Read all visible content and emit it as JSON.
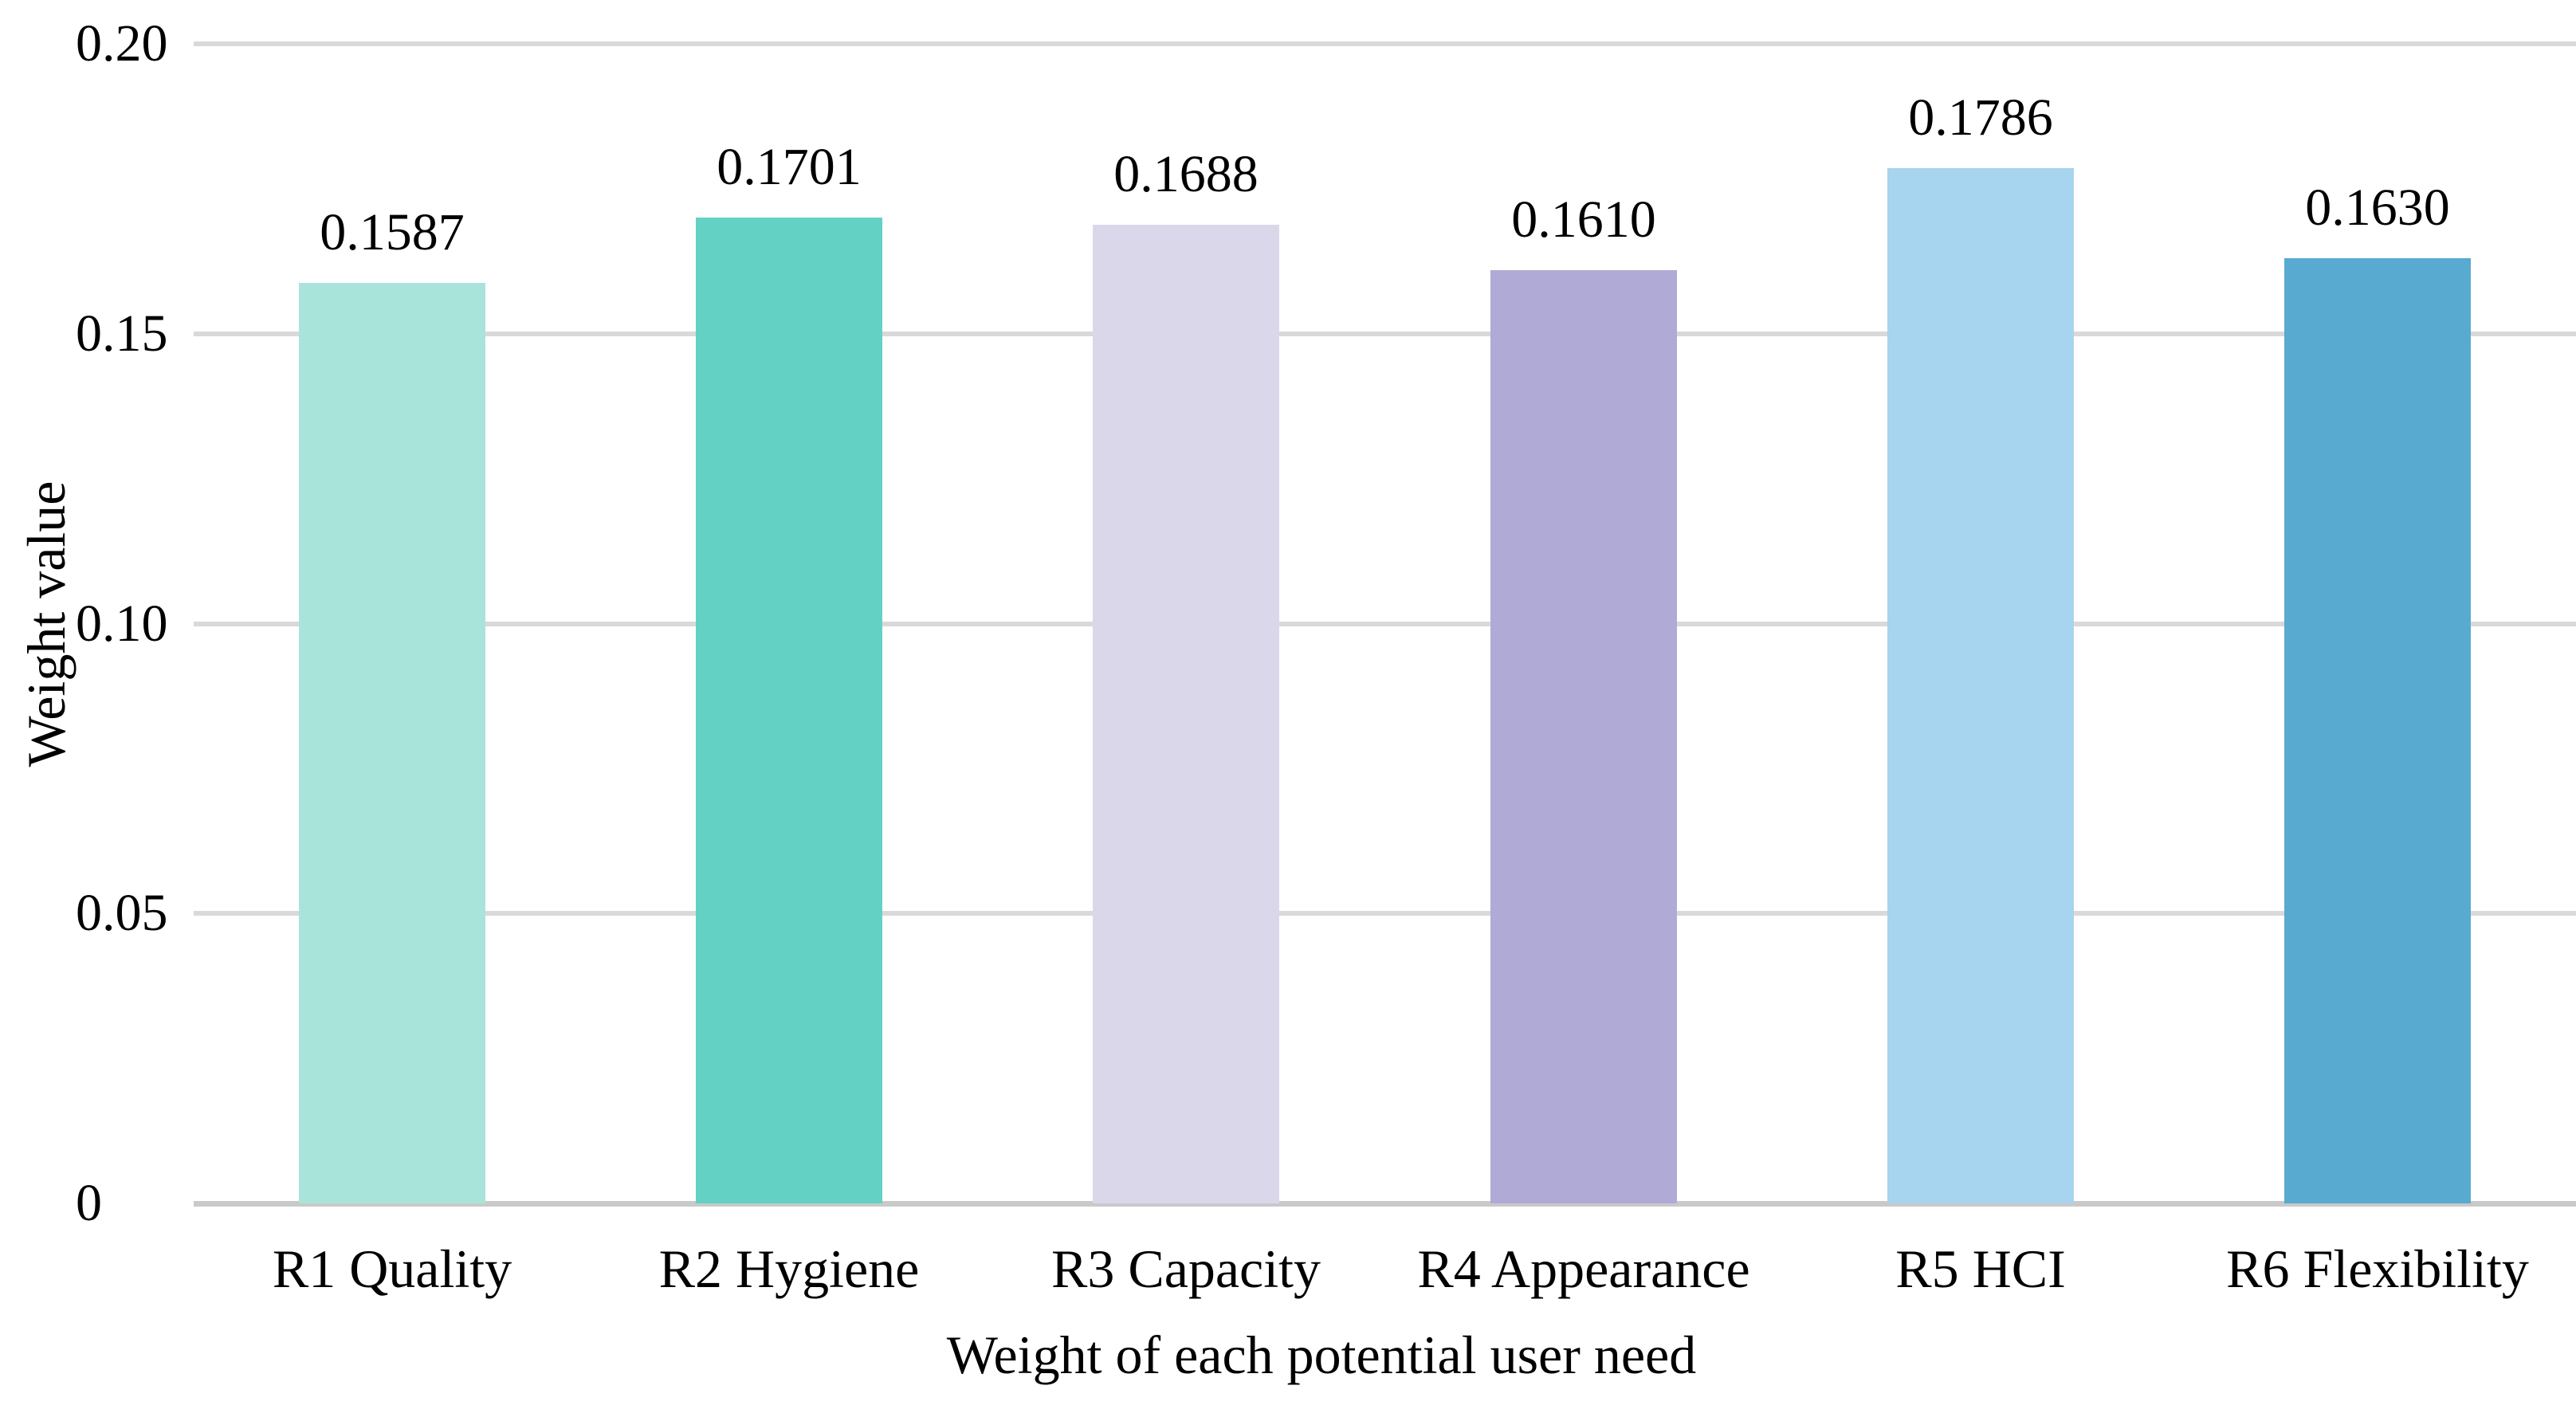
{
  "chart_data": {
    "type": "bar",
    "categories": [
      "R1 Quality",
      "R2 Hygiene",
      "R3 Capacity",
      "R4 Appearance",
      "R5 HCI",
      "R6 Flexibility"
    ],
    "values": [
      0.1587,
      0.1701,
      0.1688,
      0.161,
      0.1786,
      0.163
    ],
    "value_labels": [
      "0.1587",
      "0.1701",
      "0.1688",
      "0.1610",
      "0.1786",
      "0.1630"
    ],
    "bar_colors": [
      "#a9e4da",
      "#63d1c3",
      "#dbd7eb",
      "#b0aad6",
      "#a7d4ee",
      "#58aad1"
    ],
    "title": "",
    "xlabel": "Weight of each potential user need",
    "ylabel": "Weight value",
    "ylim": [
      0,
      0.2
    ],
    "yticks": [
      {
        "value": 0.2,
        "label": "0.20"
      },
      {
        "value": 0.15,
        "label": "0.15"
      },
      {
        "value": 0.1,
        "label": "0.10"
      },
      {
        "value": 0.05,
        "label": "0.05"
      },
      {
        "value": 0.0,
        "label": "0"
      }
    ],
    "grid": "horizontal",
    "legend": "none",
    "colors": {
      "gridline": "#d9d9d9",
      "baseline": "#c9c9c9",
      "text": "#000000",
      "background": "#ffffff"
    }
  }
}
